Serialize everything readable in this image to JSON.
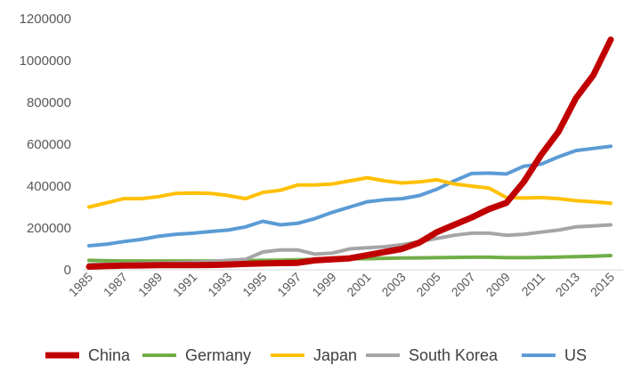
{
  "chart_data": {
    "type": "line",
    "x": [
      1985,
      1986,
      1987,
      1988,
      1989,
      1990,
      1991,
      1992,
      1993,
      1994,
      1995,
      1996,
      1997,
      1998,
      1999,
      2000,
      2001,
      2002,
      2003,
      2004,
      2005,
      2006,
      2007,
      2008,
      2009,
      2010,
      2011,
      2012,
      2013,
      2014,
      2015
    ],
    "xtick_labels": [
      "1985",
      "1987",
      "1989",
      "1991",
      "1993",
      "1995",
      "1997",
      "1999",
      "2001",
      "2003",
      "2005",
      "2007",
      "2009",
      "2011",
      "2013",
      "2015"
    ],
    "ylim": [
      0,
      1200000
    ],
    "ytick_labels": [
      "0",
      "200000",
      "400000",
      "600000",
      "800000",
      "1000000",
      "1200000"
    ],
    "ytick_values": [
      0,
      200000,
      400000,
      600000,
      800000,
      1000000,
      1200000
    ],
    "grid": false,
    "legend_position": "bottom",
    "series": [
      {
        "name": "China",
        "color": "#c00000",
        "values": [
          15000,
          18000,
          20000,
          21000,
          22000,
          22000,
          22000,
          23000,
          25000,
          28000,
          30000,
          32000,
          33000,
          45000,
          50000,
          55000,
          70000,
          85000,
          100000,
          130000,
          180000,
          215000,
          250000,
          290000,
          320000,
          420000,
          550000,
          660000,
          820000,
          930000,
          1100000
        ]
      },
      {
        "name": "Germany",
        "color": "#70ad47",
        "values": [
          45000,
          43000,
          42000,
          42000,
          42000,
          42000,
          42000,
          42000,
          43000,
          44000,
          45000,
          46000,
          48000,
          50000,
          51000,
          52000,
          53000,
          55000,
          56000,
          57000,
          58000,
          59000,
          60000,
          60000,
          58000,
          58000,
          59000,
          61000,
          63000,
          65000,
          68000
        ]
      },
      {
        "name": "Japan",
        "color": "#ffc000",
        "values": [
          300000,
          320000,
          340000,
          340000,
          350000,
          365000,
          367000,
          365000,
          355000,
          340000,
          370000,
          380000,
          405000,
          405000,
          410000,
          425000,
          440000,
          425000,
          415000,
          420000,
          430000,
          410000,
          400000,
          390000,
          345000,
          343000,
          345000,
          340000,
          330000,
          325000,
          318000
        ]
      },
      {
        "name": "South Korea",
        "color": "#a5a5a5",
        "values": [
          25000,
          27000,
          28000,
          30000,
          32000,
          34000,
          36000,
          40000,
          45000,
          50000,
          85000,
          95000,
          95000,
          75000,
          80000,
          100000,
          105000,
          110000,
          120000,
          135000,
          150000,
          165000,
          175000,
          175000,
          165000,
          170000,
          180000,
          190000,
          205000,
          210000,
          215000
        ]
      },
      {
        "name": "US",
        "color": "#5b9bd5",
        "values": [
          115000,
          122000,
          135000,
          145000,
          160000,
          170000,
          175000,
          183000,
          190000,
          205000,
          232000,
          215000,
          222000,
          245000,
          275000,
          300000,
          325000,
          335000,
          340000,
          355000,
          385000,
          425000,
          460000,
          462000,
          458000,
          495000,
          505000,
          540000,
          570000,
          580000,
          590000
        ]
      }
    ]
  }
}
